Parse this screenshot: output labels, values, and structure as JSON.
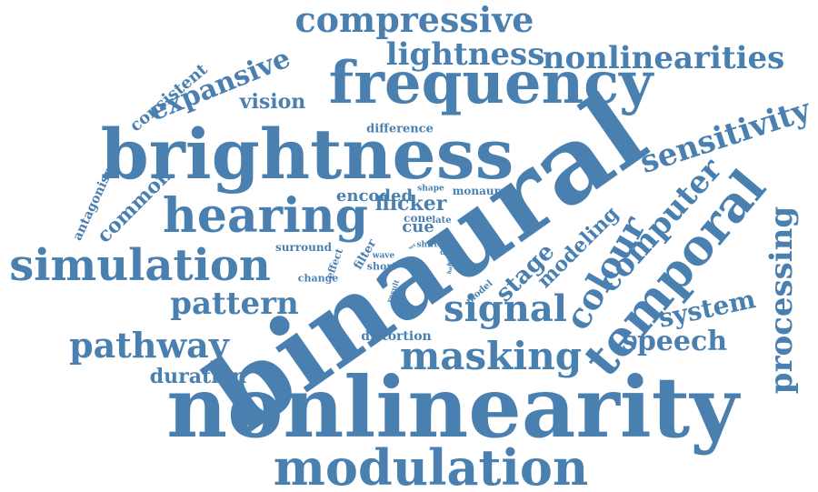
{
  "word_color": "#4a80b0",
  "words": [
    {
      "text": "binaural",
      "rotate": -35
    },
    {
      "text": "nonlinearity",
      "rotate": 0
    },
    {
      "text": "brightness",
      "rotate": 0
    },
    {
      "text": "frequency",
      "rotate": 0
    },
    {
      "text": "modulation",
      "rotate": 0
    },
    {
      "text": "hearing",
      "rotate": 0
    },
    {
      "text": "simulation",
      "rotate": 0
    },
    {
      "text": "temporal",
      "rotate": -50
    },
    {
      "text": "compressive",
      "rotate": 0
    },
    {
      "text": "nonlinearities",
      "rotate": 0
    },
    {
      "text": "lightness",
      "rotate": 0
    },
    {
      "text": "masking",
      "rotate": 0
    },
    {
      "text": "signal",
      "rotate": 0
    },
    {
      "text": "sensitivity",
      "rotate": -18
    },
    {
      "text": "processing",
      "rotate": -90
    },
    {
      "text": "expansive",
      "rotate": -22
    },
    {
      "text": "colour",
      "rotate": -60
    },
    {
      "text": "computer",
      "rotate": -48
    },
    {
      "text": "pathway",
      "rotate": 0
    },
    {
      "text": "pattern",
      "rotate": 0
    },
    {
      "text": "speech",
      "rotate": 0
    },
    {
      "text": "system",
      "rotate": -12
    },
    {
      "text": "duration",
      "rotate": 0
    },
    {
      "text": "common",
      "rotate": -45
    },
    {
      "text": "consistent",
      "rotate": -40
    },
    {
      "text": "modeling",
      "rotate": -45
    },
    {
      "text": "stage",
      "rotate": -45
    },
    {
      "text": "vision",
      "rotate": 0
    },
    {
      "text": "flicker",
      "rotate": 0
    },
    {
      "text": "encoded",
      "rotate": 0
    },
    {
      "text": "antagonism",
      "rotate": -65
    },
    {
      "text": "difference",
      "rotate": 0
    },
    {
      "text": "cue",
      "rotate": 0
    },
    {
      "text": "cone",
      "rotate": 0
    },
    {
      "text": "late",
      "rotate": 0
    },
    {
      "text": "monaural",
      "rotate": 0
    },
    {
      "text": "surround",
      "rotate": 0
    },
    {
      "text": "distortion",
      "rotate": 0
    },
    {
      "text": "shape",
      "rotate": 0
    },
    {
      "text": "short",
      "rotate": 0
    },
    {
      "text": "filter",
      "rotate": -60
    },
    {
      "text": "effect",
      "rotate": -70
    },
    {
      "text": "change",
      "rotate": 0
    },
    {
      "text": "wave",
      "rotate": 0
    },
    {
      "text": "shift",
      "rotate": 0
    },
    {
      "text": "model",
      "rotate": -40
    },
    {
      "text": "result",
      "rotate": -70
    },
    {
      "text": "data",
      "rotate": 0
    },
    {
      "text": "high",
      "rotate": -80
    },
    {
      "text": "half",
      "rotate": -80
    },
    {
      "text": "set",
      "rotate": -30
    }
  ]
}
